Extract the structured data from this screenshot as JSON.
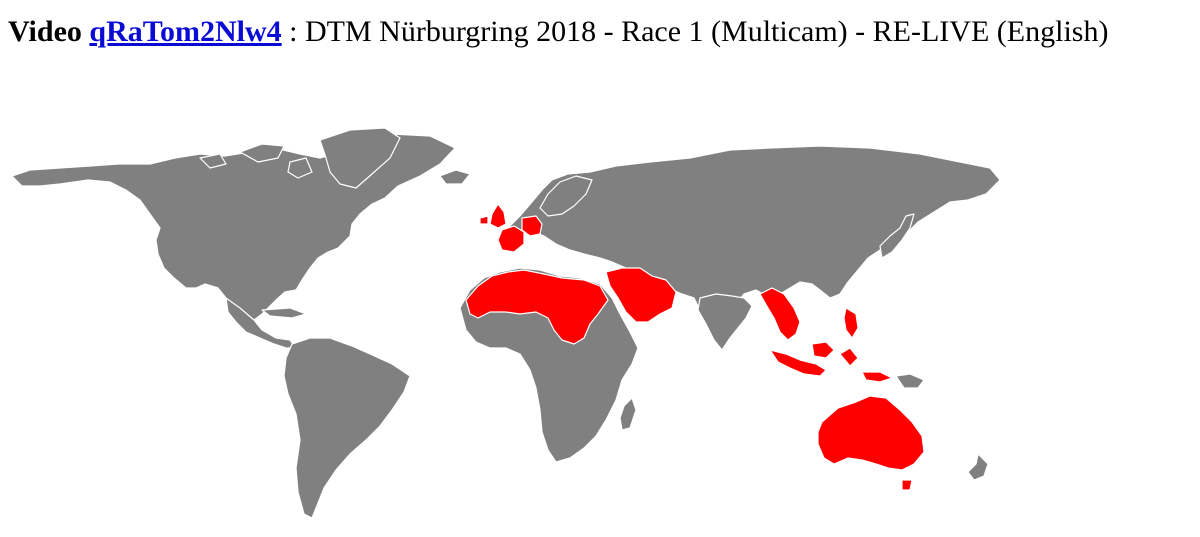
{
  "header": {
    "label": "Video",
    "video_id": "qRaTom2Nlw4",
    "separator": " : ",
    "title": "DTM Nürburgring 2018 - Race 1 (Multicam) - RE-LIVE (English)"
  },
  "map": {
    "colors": {
      "default": "#808080",
      "highlighted": "#ff0000",
      "background": "#ffffff",
      "borders": "#ffffff"
    },
    "highlighted_regions": [
      "United Kingdom",
      "France",
      "Germany",
      "Morocco",
      "Western Sahara",
      "Algeria",
      "Tunisia",
      "Libya",
      "Egypt",
      "Sudan",
      "South Sudan",
      "Mauritania",
      "Jordan",
      "Syria",
      "Iraq",
      "Kuwait",
      "Saudi Arabia",
      "Yemen",
      "Oman",
      "United Arab Emirates",
      "Qatar",
      "Bahrain",
      "Lebanon",
      "Myanmar",
      "Thailand",
      "Laos",
      "Cambodia",
      "Vietnam",
      "Malaysia",
      "Singapore",
      "Indonesia",
      "Philippines",
      "Brunei",
      "Timor-Leste",
      "Australia"
    ]
  }
}
